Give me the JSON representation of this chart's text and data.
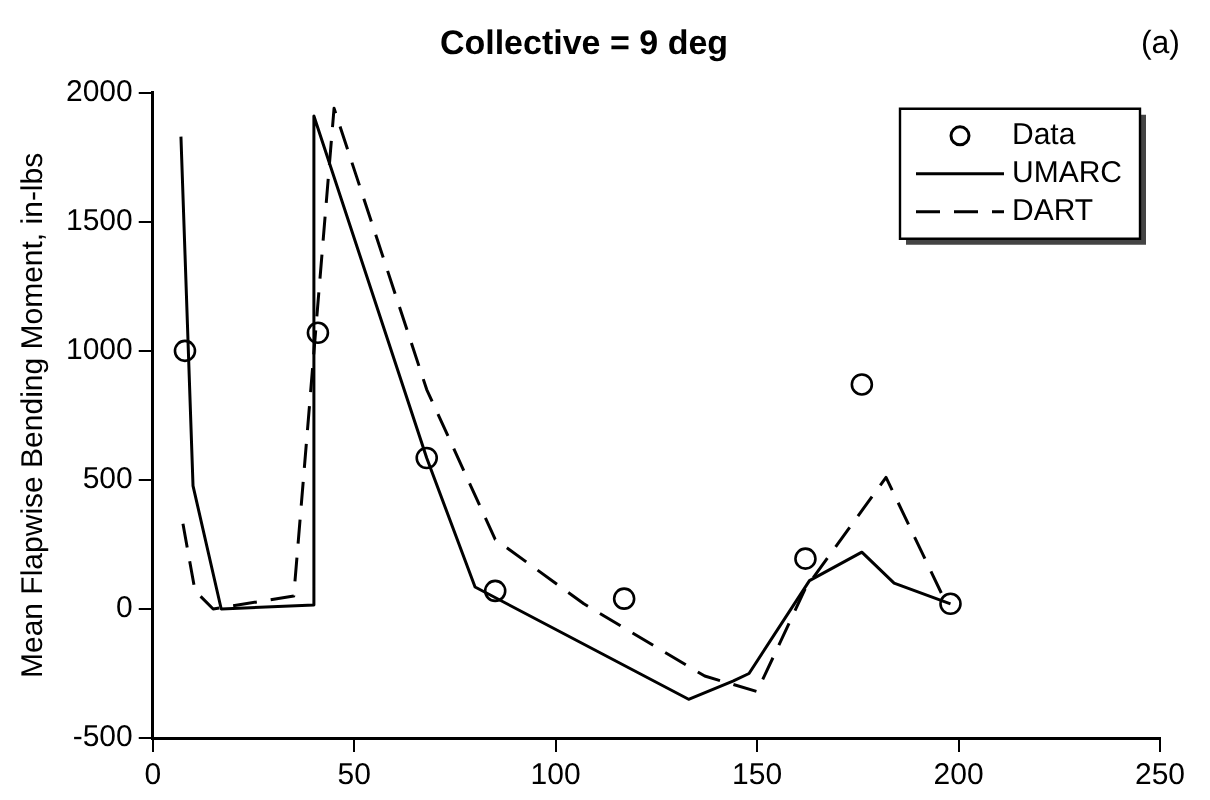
{
  "chart_data": {
    "type": "line",
    "title": "Collective = 9 deg",
    "ylabel": "Mean Flapwise Bending Moment, in-lbs",
    "annotations": [
      "(a)"
    ],
    "xlim": [
      0,
      250
    ],
    "xticks": [
      0,
      50,
      100,
      150,
      200,
      250
    ],
    "ylim": [
      -500,
      2000
    ],
    "yticks": [
      -500,
      0,
      500,
      1000,
      1500,
      2000
    ],
    "grid": false,
    "legend": "top right",
    "series": [
      {
        "name": "Data",
        "type": "scatter",
        "marker": "circle",
        "color": "#000000",
        "x": [
          8,
          41,
          68,
          85,
          117,
          162,
          176,
          198
        ],
        "values": [
          1000,
          1070,
          585,
          70,
          40,
          195,
          870,
          20
        ]
      },
      {
        "name": "UMARC",
        "type": "line",
        "marker": "none",
        "line_style": "solid",
        "color": "#000000",
        "x": [
          7,
          10,
          17,
          40,
          40,
          68,
          80,
          133,
          144,
          148,
          163,
          176,
          184,
          198
        ],
        "values": [
          1830,
          477,
          0,
          15,
          1910,
          585,
          85,
          -350,
          -280,
          -250,
          110,
          220,
          100,
          20
        ]
      },
      {
        "name": "DART",
        "type": "line",
        "marker": "none",
        "line_style": "dashed",
        "color": "#000000",
        "x": [
          7.5,
          10.5,
          15,
          35,
          45,
          68,
          85,
          107,
          137,
          150,
          162,
          182,
          197
        ],
        "values": [
          330,
          70,
          0,
          50,
          1940,
          850,
          270,
          20,
          -260,
          -320,
          80,
          510,
          20
        ]
      }
    ]
  }
}
